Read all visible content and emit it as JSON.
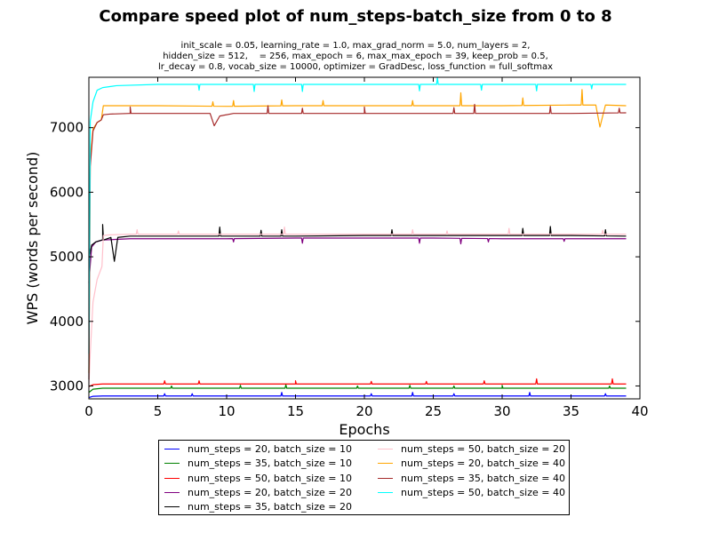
{
  "chart_data": {
    "type": "line",
    "title": "Compare speed plot of num_steps-batch_size from 0 to 8",
    "subtitle_lines": [
      "init_scale = 0.05, learning_rate = 1.0, max_grad_norm = 5.0, num_layers = 2,",
      "hidden_size = 512,    = 256, max_epoch = 6, max_max_epoch = 39, keep_prob = 0.5,",
      "lr_decay = 0.8, vocab_size = 10000, optimizer = GradDesc, loss_function = full_softmax"
    ],
    "xlabel": "Epochs",
    "ylabel": "WPS (words per second)",
    "xlim": [
      0,
      40
    ],
    "ylim": [
      2800,
      7780
    ],
    "xticks": [
      0,
      5,
      10,
      15,
      20,
      25,
      30,
      35,
      40
    ],
    "yticks": [
      3000,
      4000,
      5000,
      6000,
      7000
    ],
    "grid": false,
    "legend_placement": "below plot, two columns",
    "series": [
      {
        "name": "num_steps = 20, batch_size = 10",
        "color": "#0000ff",
        "x": [
          0,
          0.3,
          1,
          5,
          10,
          15,
          20,
          25,
          30,
          35,
          39
        ],
        "y": [
          2820,
          2840,
          2845,
          2845,
          2845,
          2845,
          2845,
          2845,
          2845,
          2845,
          2845
        ],
        "spikes": [
          [
            5.5,
            2880
          ],
          [
            7.5,
            2880
          ],
          [
            14,
            2900
          ],
          [
            20.5,
            2880
          ],
          [
            23.5,
            2900
          ],
          [
            26.5,
            2880
          ],
          [
            32,
            2900
          ],
          [
            37.5,
            2880
          ]
        ]
      },
      {
        "name": "num_steps = 35, batch_size = 10",
        "color": "#008000",
        "x": [
          0,
          0.3,
          1,
          5,
          10,
          15,
          20,
          25,
          30,
          35,
          39
        ],
        "y": [
          2900,
          2950,
          2965,
          2965,
          2965,
          2965,
          2965,
          2965,
          2965,
          2965,
          2965
        ],
        "spikes": [
          [
            6,
            3000
          ],
          [
            11,
            3010
          ],
          [
            14.3,
            3020
          ],
          [
            19.5,
            3000
          ],
          [
            23.3,
            3010
          ],
          [
            26.5,
            3000
          ],
          [
            30,
            3010
          ],
          [
            37.8,
            3000
          ]
        ]
      },
      {
        "name": "num_steps = 50, batch_size = 10",
        "color": "#ff0000",
        "x": [
          0,
          0.3,
          1,
          5,
          10,
          15,
          20,
          25,
          30,
          35,
          39
        ],
        "y": [
          2990,
          3020,
          3030,
          3030,
          3030,
          3030,
          3030,
          3030,
          3030,
          3030,
          3030
        ],
        "spikes": [
          [
            5.5,
            3080
          ],
          [
            8,
            3080
          ],
          [
            15,
            3080
          ],
          [
            20.5,
            3070
          ],
          [
            24.5,
            3070
          ],
          [
            28.7,
            3080
          ],
          [
            32.5,
            3110
          ],
          [
            38,
            3110
          ]
        ]
      },
      {
        "name": "num_steps = 20, batch_size = 20",
        "color": "#800080",
        "x": [
          0,
          0.2,
          0.5,
          1,
          3,
          5,
          10,
          15,
          20,
          25,
          30,
          35,
          39
        ],
        "y": [
          4600,
          5150,
          5230,
          5260,
          5280,
          5280,
          5280,
          5290,
          5290,
          5290,
          5280,
          5280,
          5280
        ],
        "spikes": [
          [
            10.5,
            5230
          ],
          [
            15.5,
            5210
          ],
          [
            24,
            5210
          ],
          [
            27,
            5200
          ],
          [
            29,
            5230
          ],
          [
            34.5,
            5240
          ]
        ]
      },
      {
        "name": "num_steps = 35, batch_size = 20",
        "color": "#000000",
        "x": [
          0,
          0.2,
          0.5,
          1,
          1.6,
          1.85,
          2.1,
          3,
          5,
          10,
          15,
          20,
          25,
          30,
          35,
          39
        ],
        "y": [
          4950,
          5180,
          5230,
          5260,
          5300,
          4930,
          5300,
          5320,
          5320,
          5320,
          5320,
          5330,
          5330,
          5330,
          5330,
          5320
        ],
        "spikes": [
          [
            1,
            5500
          ],
          [
            9.5,
            5460
          ],
          [
            12.5,
            5410
          ],
          [
            14,
            5420
          ],
          [
            22,
            5420
          ],
          [
            31.5,
            5440
          ],
          [
            33.5,
            5470
          ],
          [
            37.5,
            5420
          ]
        ]
      },
      {
        "name": "num_steps = 50, batch_size = 20",
        "color": "#ffc0cb",
        "x": [
          0,
          0.1,
          0.3,
          0.6,
          0.95,
          1.05,
          1.5,
          3,
          5,
          10,
          15,
          20,
          25,
          30,
          35,
          39
        ],
        "y": [
          3000,
          3500,
          4300,
          4650,
          4850,
          5330,
          5340,
          5350,
          5350,
          5350,
          5350,
          5350,
          5350,
          5350,
          5350,
          5350
        ],
        "spikes": [
          [
            3.5,
            5420
          ],
          [
            6.5,
            5400
          ],
          [
            14.2,
            5460
          ],
          [
            23.5,
            5420
          ],
          [
            26,
            5400
          ],
          [
            30.5,
            5440
          ],
          [
            37.3,
            5410
          ]
        ]
      },
      {
        "name": "num_steps = 20, batch_size = 40",
        "color": "#ffa500",
        "x": [
          0,
          0.1,
          0.3,
          0.6,
          0.9,
          1.05,
          1.5,
          3,
          5,
          10,
          15,
          20,
          25,
          30,
          35,
          36.8,
          37.1,
          37.5,
          39
        ],
        "y": [
          3200,
          6500,
          6980,
          7080,
          7120,
          7340,
          7340,
          7340,
          7340,
          7330,
          7340,
          7340,
          7340,
          7340,
          7350,
          7350,
          7010,
          7350,
          7340
        ],
        "spikes": [
          [
            9,
            7400
          ],
          [
            10.5,
            7420
          ],
          [
            14,
            7430
          ],
          [
            17,
            7420
          ],
          [
            23.5,
            7420
          ],
          [
            27,
            7540
          ],
          [
            31.5,
            7460
          ],
          [
            35.8,
            7590
          ]
        ]
      },
      {
        "name": "num_steps = 35, batch_size = 40",
        "color": "#a52a2a",
        "x": [
          0,
          0.1,
          0.3,
          0.6,
          0.9,
          1.05,
          1.5,
          3,
          5,
          8.8,
          9.1,
          9.5,
          10.5,
          15,
          20,
          25,
          30,
          35,
          39
        ],
        "y": [
          3100,
          6400,
          6950,
          7080,
          7120,
          7200,
          7210,
          7220,
          7220,
          7220,
          7030,
          7180,
          7220,
          7220,
          7220,
          7220,
          7220,
          7220,
          7230
        ],
        "spikes": [
          [
            3,
            7320
          ],
          [
            13,
            7340
          ],
          [
            15.5,
            7300
          ],
          [
            20,
            7320
          ],
          [
            26.5,
            7310
          ],
          [
            28,
            7360
          ],
          [
            33.5,
            7330
          ],
          [
            38.5,
            7300
          ]
        ]
      },
      {
        "name": "num_steps = 50, batch_size = 40",
        "color": "#00ffff",
        "x": [
          0,
          0.1,
          0.3,
          0.6,
          1,
          2,
          5,
          10,
          15,
          20,
          25,
          30,
          35,
          39
        ],
        "y": [
          3500,
          7100,
          7400,
          7580,
          7620,
          7650,
          7670,
          7670,
          7670,
          7670,
          7670,
          7670,
          7670,
          7670
        ],
        "spikes": [
          [
            8,
            7580
          ],
          [
            12,
            7560
          ],
          [
            15.5,
            7560
          ],
          [
            24,
            7570
          ],
          [
            25.3,
            7780
          ],
          [
            28.5,
            7580
          ],
          [
            32.5,
            7570
          ],
          [
            36.5,
            7600
          ]
        ]
      }
    ]
  }
}
